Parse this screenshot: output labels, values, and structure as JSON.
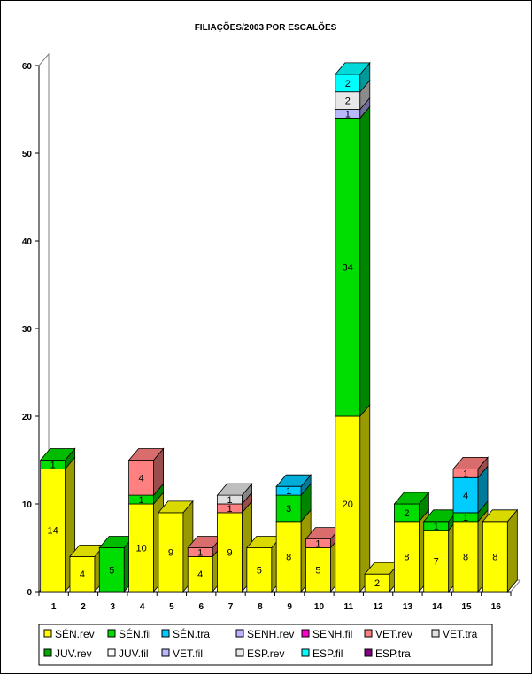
{
  "chart_data": {
    "type": "bar",
    "stacked": true,
    "three_d": true,
    "title": "FILIAÇÕES/2003 POR ESCALÕES",
    "xlabel": "",
    "ylabel": "",
    "ylim": [
      0,
      60
    ],
    "yticks": [
      0,
      10,
      20,
      30,
      40,
      50,
      60
    ],
    "grid": false,
    "legend_position": "bottom",
    "categories": [
      "1",
      "2",
      "3",
      "4",
      "5",
      "6",
      "7",
      "8",
      "9",
      "10",
      "11",
      "12",
      "13",
      "14",
      "15",
      "16"
    ],
    "series": [
      {
        "name": "SÉN.rev",
        "color": "#ffff00",
        "values": [
          14,
          4,
          0,
          10,
          9,
          4,
          9,
          5,
          8,
          5,
          20,
          2,
          8,
          7,
          8,
          8
        ]
      },
      {
        "name": "SÉN.fil",
        "color": "#00dd00",
        "values": [
          1,
          0,
          5,
          1,
          0,
          0,
          0,
          0,
          3,
          0,
          34,
          0,
          2,
          1,
          1,
          0
        ]
      },
      {
        "name": "SÉN.tra",
        "color": "#00ccff",
        "values": [
          0,
          0,
          0,
          0,
          0,
          0,
          0,
          0,
          1,
          0,
          0,
          0,
          0,
          0,
          4,
          0
        ]
      },
      {
        "name": "SENH.rev",
        "color": "#c0b0ff",
        "values": [
          0,
          0,
          0,
          0,
          0,
          0,
          0,
          0,
          0,
          0,
          0,
          0,
          0,
          0,
          0,
          0
        ]
      },
      {
        "name": "SENH.fil",
        "color": "#ff00cc",
        "values": [
          0,
          0,
          0,
          0,
          0,
          0,
          0,
          0,
          0,
          0,
          0,
          0,
          0,
          0,
          0,
          0
        ]
      },
      {
        "name": "VET.rev",
        "color": "#ff8080",
        "values": [
          0,
          0,
          0,
          4,
          0,
          1,
          1,
          0,
          0,
          1,
          0,
          0,
          0,
          0,
          1,
          0
        ]
      },
      {
        "name": "VET.tra",
        "color": "#e0e0e0",
        "values": [
          0,
          0,
          0,
          0,
          0,
          0,
          1,
          0,
          0,
          0,
          0,
          0,
          0,
          0,
          0,
          0
        ]
      },
      {
        "name": "JUV.rev",
        "color": "#00aa00",
        "values": [
          0,
          0,
          0,
          0,
          0,
          0,
          0,
          0,
          0,
          0,
          0,
          0,
          0,
          0,
          0,
          0
        ]
      },
      {
        "name": "JUV.fil",
        "color": "#ffffff",
        "values": [
          0,
          0,
          0,
          0,
          0,
          0,
          0,
          0,
          0,
          0,
          0,
          0,
          0,
          0,
          0,
          0
        ]
      },
      {
        "name": "VET.fil",
        "color": "#b8b8ff",
        "values": [
          0,
          0,
          0,
          0,
          0,
          0,
          0,
          0,
          0,
          0,
          1,
          0,
          0,
          0,
          0,
          0
        ]
      },
      {
        "name": "ESP.rev",
        "color": "#e8e8e8",
        "values": [
          0,
          0,
          0,
          0,
          0,
          0,
          0,
          0,
          0,
          0,
          2,
          0,
          0,
          0,
          0,
          0
        ]
      },
      {
        "name": "ESP.fil",
        "color": "#00ffff",
        "values": [
          0,
          0,
          0,
          0,
          0,
          0,
          0,
          0,
          0,
          0,
          2,
          0,
          0,
          0,
          0,
          0
        ]
      },
      {
        "name": "ESP.tra",
        "color": "#800080",
        "values": [
          0,
          0,
          0,
          0,
          0,
          0,
          0,
          0,
          0,
          0,
          0,
          0,
          0,
          0,
          0,
          0
        ]
      }
    ]
  }
}
